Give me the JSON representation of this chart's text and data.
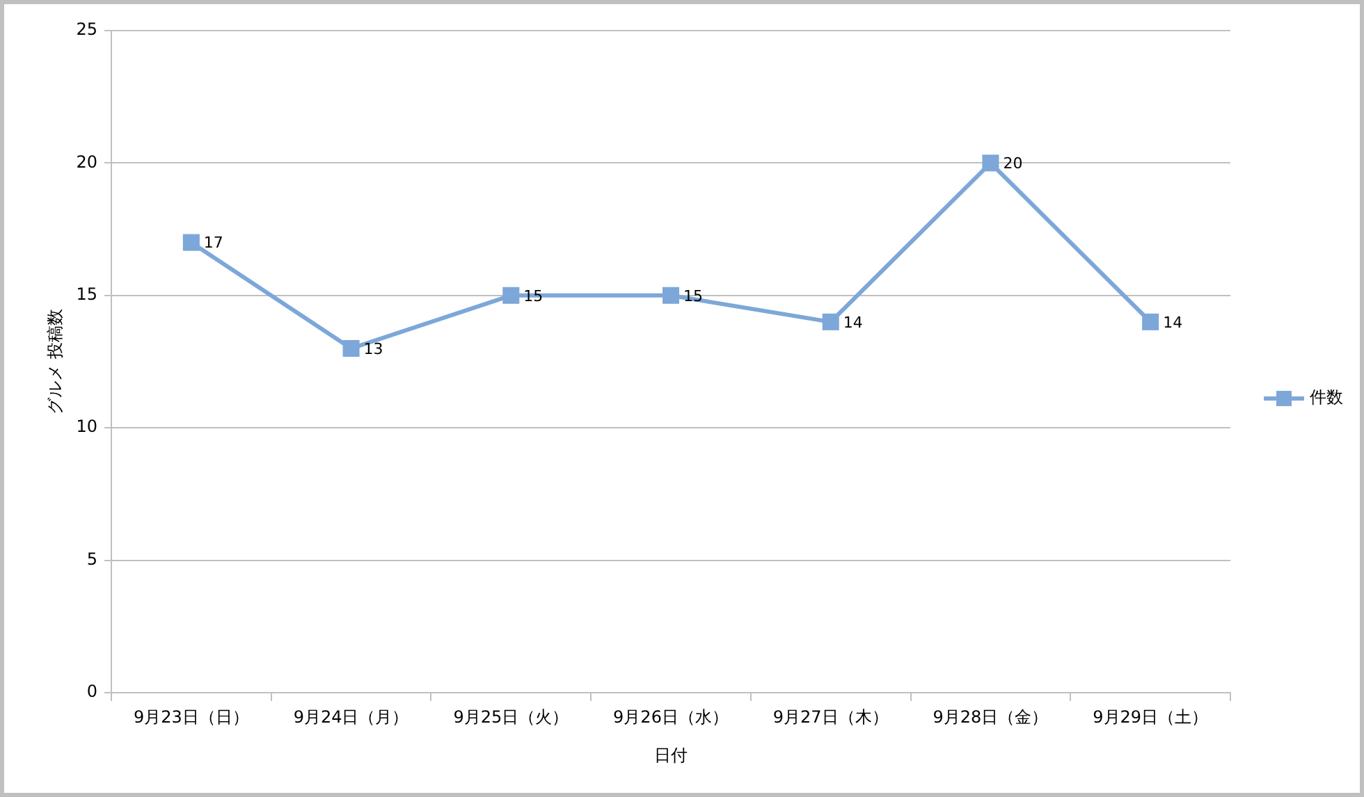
{
  "chart_data": {
    "type": "line",
    "xlabel": "日付",
    "ylabel": "グルメ 投稿数",
    "categories": [
      "9月23日（日）",
      "9月24日（月）",
      "9月25日（火）",
      "9月26日（水）",
      "9月27日（木）",
      "9月28日（金）",
      "9月29日（土）"
    ],
    "series": [
      {
        "name": "件数",
        "color": "#7da7d9",
        "values": [
          17,
          13,
          15,
          15,
          14,
          20,
          14
        ]
      }
    ],
    "ylim": [
      0,
      25
    ],
    "yticks": [
      0,
      5,
      10,
      15,
      20,
      25
    ],
    "grid": "y",
    "legend": "right",
    "marker": "square",
    "line_style": "solid",
    "data_labels": true
  }
}
